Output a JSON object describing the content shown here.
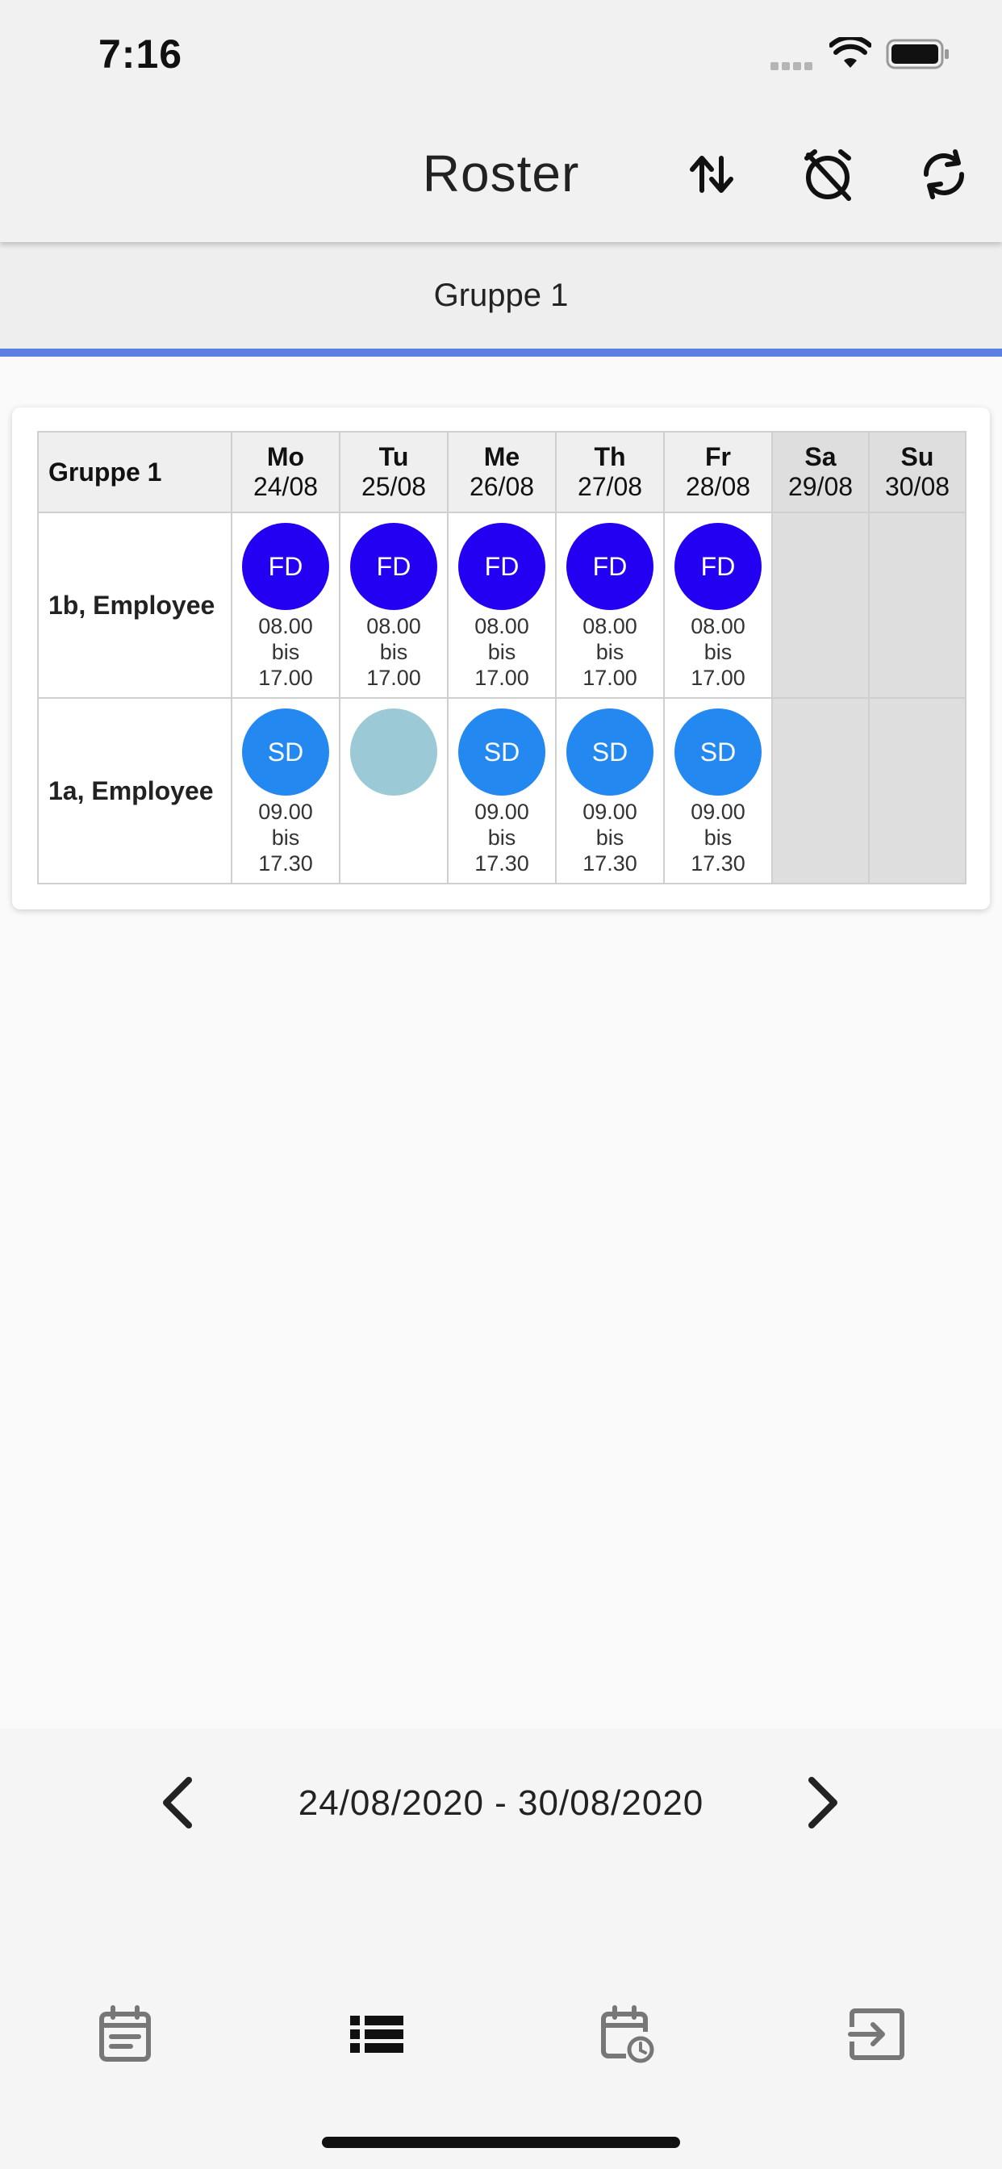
{
  "status_bar": {
    "time": "7:16"
  },
  "app_bar": {
    "title": "Roster",
    "actions": [
      "sort-icon",
      "alarm-off-icon",
      "sync-icon"
    ]
  },
  "tabs": [
    {
      "label": "Gruppe 1",
      "selected": true
    }
  ],
  "colors": {
    "accent": "#5b7fe3",
    "shift_fd": "#2400f2",
    "shift_sd": "#2388f0",
    "shift_empty": "#9bcad6",
    "weekend": "#dedede"
  },
  "roster": {
    "group_label": "Gruppe 1",
    "days": [
      {
        "name": "Mo",
        "date": "24/08"
      },
      {
        "name": "Tu",
        "date": "25/08"
      },
      {
        "name": "Me",
        "date": "26/08"
      },
      {
        "name": "Th",
        "date": "27/08"
      },
      {
        "name": "Fr",
        "date": "28/08"
      },
      {
        "name": "Sa",
        "date": "29/08"
      },
      {
        "name": "Su",
        "date": "30/08"
      }
    ],
    "rows": [
      {
        "employee": "1b, Employee",
        "shifts": [
          {
            "code": "FD",
            "start": "08.00",
            "sep": "bis",
            "end": "17.00"
          },
          {
            "code": "FD",
            "start": "08.00",
            "sep": "bis",
            "end": "17.00"
          },
          {
            "code": "FD",
            "start": "08.00",
            "sep": "bis",
            "end": "17.00"
          },
          {
            "code": "FD",
            "start": "08.00",
            "sep": "bis",
            "end": "17.00"
          },
          {
            "code": "FD",
            "start": "08.00",
            "sep": "bis",
            "end": "17.00"
          }
        ]
      },
      {
        "employee": "1a, Employee",
        "shifts": [
          {
            "code": "SD",
            "start": "09.00",
            "sep": "bis",
            "end": "17.30"
          },
          {
            "code": "",
            "start": "",
            "sep": "",
            "end": ""
          },
          {
            "code": "SD",
            "start": "09.00",
            "sep": "bis",
            "end": "17.30"
          },
          {
            "code": "SD",
            "start": "09.00",
            "sep": "bis",
            "end": "17.30"
          },
          {
            "code": "SD",
            "start": "09.00",
            "sep": "bis",
            "end": "17.30"
          }
        ]
      }
    ]
  },
  "date_nav": {
    "range": "24/08/2020 - 30/08/2020"
  },
  "bottom_nav": {
    "items": [
      "calendar-notes-icon",
      "list-icon",
      "calendar-clock-icon",
      "exit-icon"
    ],
    "selected": 1
  }
}
